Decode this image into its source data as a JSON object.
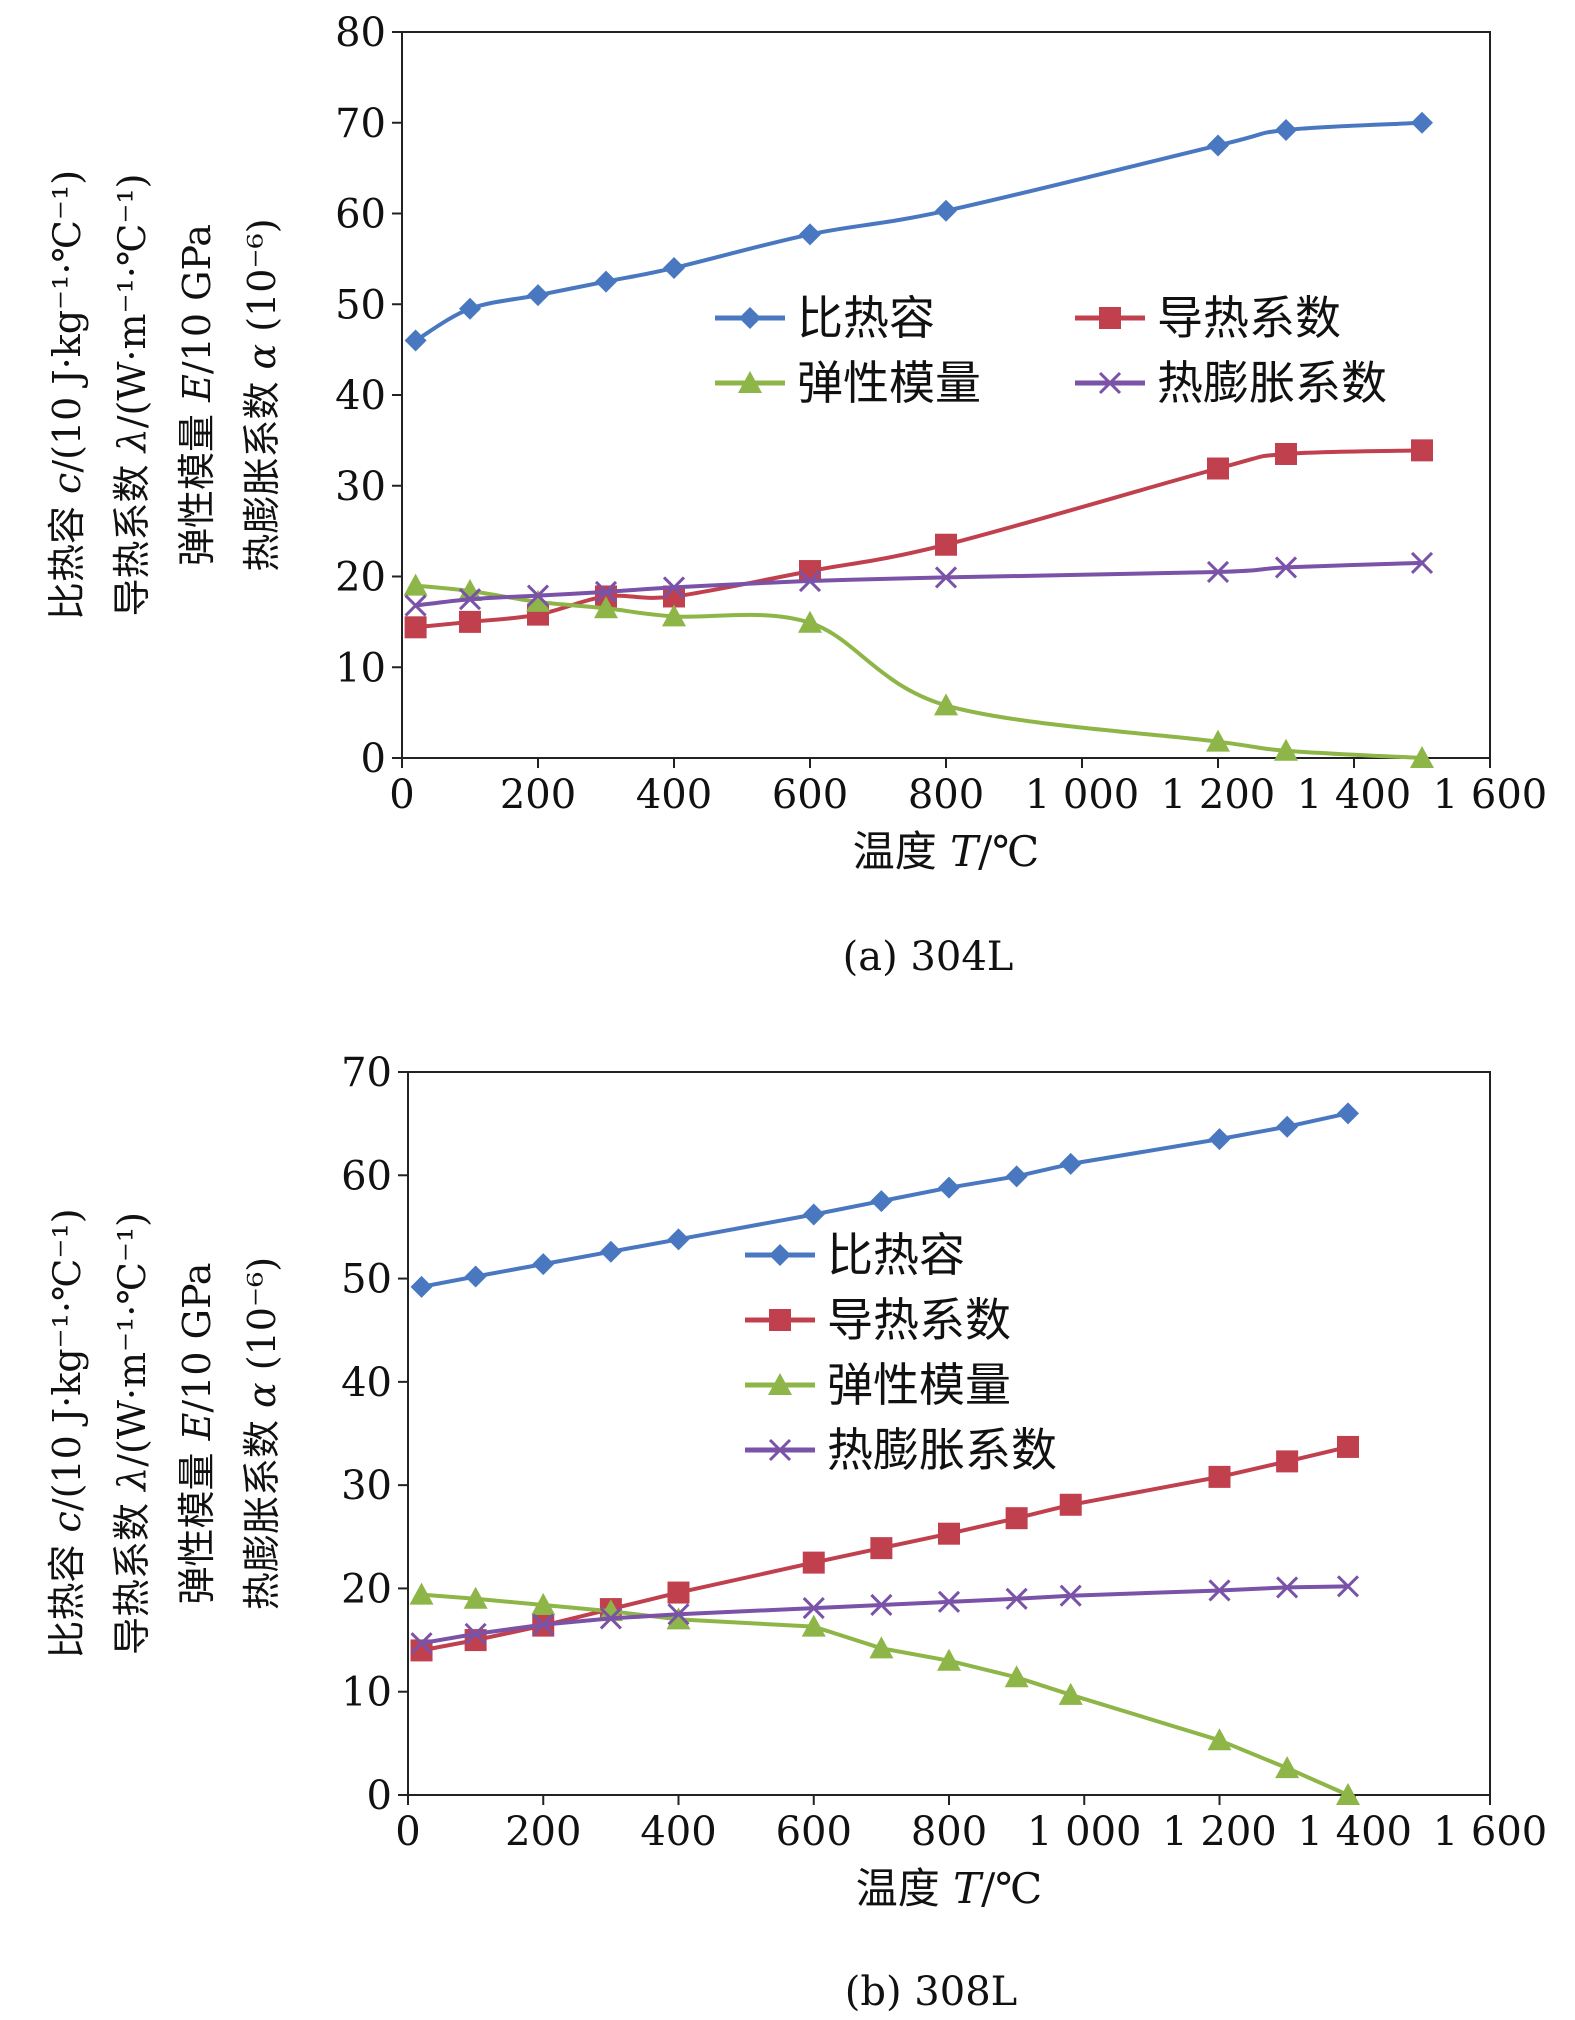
{
  "chart_data": [
    {
      "type": "line",
      "caption": "(a) 304L",
      "xlabel": {
        "text": "温度 ",
        "var": "T",
        "unit": "/℃"
      },
      "ylabel_lines": [
        {
          "pre": "比热容 ",
          "var": "c",
          "post": "/(10 J·kg⁻¹·℃⁻¹)"
        },
        {
          "pre": "导热系数 ",
          "var": "λ",
          "post": "/(W·m⁻¹·℃⁻¹)"
        },
        {
          "pre": "弹性模量 ",
          "var": "E",
          "post": "/10 GPa"
        },
        {
          "pre": "热膨胀系数 ",
          "var": "α",
          "post": " (10⁻⁶)"
        }
      ],
      "xlim": [
        0,
        1600
      ],
      "ylim": [
        0,
        80
      ],
      "xticks": [
        0,
        200,
        400,
        600,
        800,
        1000,
        1200,
        1400,
        1600
      ],
      "xtick_labels": [
        "0",
        "200",
        "400",
        "600",
        "800",
        "1 000",
        "1 200",
        "1 400",
        "1 600"
      ],
      "yticks": [
        0,
        10,
        20,
        30,
        40,
        50,
        60,
        70,
        80
      ],
      "ytick_labels": [
        "0",
        "10",
        "20",
        "30",
        "40",
        "50",
        "60",
        "70",
        "80"
      ],
      "legend_layout": "two-column",
      "grid": false,
      "series": [
        {
          "name": "比热容",
          "color": "#4a78c0",
          "marker": "diamond",
          "smooth": true,
          "x": [
            20,
            100,
            200,
            300,
            400,
            600,
            800,
            1200,
            1300,
            1500
          ],
          "y": [
            46,
            49.5,
            51,
            52.5,
            54,
            57.7,
            60.3,
            67.5,
            69.2,
            70
          ]
        },
        {
          "name": "导热系数",
          "color": "#c0404e",
          "marker": "square",
          "smooth": true,
          "x": [
            20,
            100,
            200,
            300,
            400,
            600,
            800,
            1200,
            1300,
            1500
          ],
          "y": [
            14.4,
            15,
            15.8,
            17.8,
            17.8,
            20.6,
            23.5,
            31.9,
            33.5,
            33.9
          ]
        },
        {
          "name": "弹性模量",
          "color": "#8db547",
          "marker": "triangle",
          "smooth": true,
          "x": [
            20,
            100,
            200,
            300,
            400,
            600,
            800,
            1200,
            1300,
            1500
          ],
          "y": [
            19,
            18.4,
            17.2,
            16.5,
            15.6,
            14.9,
            5.8,
            1.8,
            0.8,
            0
          ]
        },
        {
          "name": "热膨胀系数",
          "color": "#7a52a8",
          "marker": "x",
          "smooth": true,
          "x": [
            20,
            100,
            200,
            300,
            400,
            600,
            800,
            1200,
            1300,
            1500
          ],
          "y": [
            16.8,
            17.5,
            17.9,
            18.3,
            18.8,
            19.5,
            19.9,
            20.5,
            21,
            21.5
          ]
        }
      ]
    },
    {
      "type": "line",
      "caption": "(b) 308L",
      "xlabel": {
        "text": "温度 ",
        "var": "T",
        "unit": "/℃"
      },
      "ylabel_lines": [
        {
          "pre": "比热容 ",
          "var": "c",
          "post": "/(10 J·kg⁻¹·℃⁻¹)"
        },
        {
          "pre": "导热系数 ",
          "var": "λ",
          "post": "/(W·m⁻¹·℃⁻¹)"
        },
        {
          "pre": "弹性模量 ",
          "var": "E",
          "post": "/10 GPa"
        },
        {
          "pre": "热膨胀系数 ",
          "var": "α",
          "post": " (10⁻⁶)"
        }
      ],
      "xlim": [
        0,
        1600
      ],
      "ylim": [
        0,
        70
      ],
      "xticks": [
        0,
        200,
        400,
        600,
        800,
        1000,
        1200,
        1400,
        1600
      ],
      "xtick_labels": [
        "0",
        "200",
        "400",
        "600",
        "800",
        "1 000",
        "1 200",
        "1 400",
        "1 600"
      ],
      "yticks": [
        0,
        10,
        20,
        30,
        40,
        50,
        60,
        70
      ],
      "ytick_labels": [
        "0",
        "10",
        "20",
        "30",
        "40",
        "50",
        "60",
        "70"
      ],
      "legend_layout": "one-column",
      "grid": false,
      "series": [
        {
          "name": "比热容",
          "color": "#4a78c0",
          "marker": "diamond",
          "smooth": false,
          "x": [
            20,
            100,
            200,
            300,
            400,
            600,
            700,
            800,
            900,
            980,
            1200,
            1300,
            1390
          ],
          "y": [
            49.2,
            50.2,
            51.4,
            52.6,
            53.8,
            56.2,
            57.5,
            58.8,
            59.9,
            61.1,
            63.5,
            64.7,
            66
          ]
        },
        {
          "name": "导热系数",
          "color": "#c0404e",
          "marker": "square",
          "smooth": false,
          "x": [
            20,
            100,
            200,
            300,
            400,
            600,
            700,
            800,
            900,
            980,
            1200,
            1300,
            1390
          ],
          "y": [
            14,
            15,
            16.4,
            18,
            19.6,
            22.5,
            23.9,
            25.3,
            26.8,
            28.1,
            30.8,
            32.3,
            33.7
          ]
        },
        {
          "name": "弹性模量",
          "color": "#8db547",
          "marker": "triangle",
          "smooth": false,
          "x": [
            20,
            100,
            200,
            300,
            400,
            600,
            700,
            800,
            900,
            980,
            1200,
            1300,
            1390
          ],
          "y": [
            19.4,
            19,
            18.4,
            17.8,
            17,
            16.3,
            14.2,
            13,
            11.4,
            9.7,
            5.3,
            2.6,
            0
          ]
        },
        {
          "name": "热膨胀系数",
          "color": "#7a52a8",
          "marker": "x",
          "smooth": false,
          "x": [
            20,
            100,
            200,
            300,
            400,
            600,
            700,
            800,
            900,
            980,
            1200,
            1300,
            1390
          ],
          "y": [
            14.7,
            15.6,
            16.5,
            17.1,
            17.5,
            18.1,
            18.4,
            18.7,
            19,
            19.3,
            19.8,
            20.1,
            20.2
          ]
        }
      ]
    }
  ]
}
